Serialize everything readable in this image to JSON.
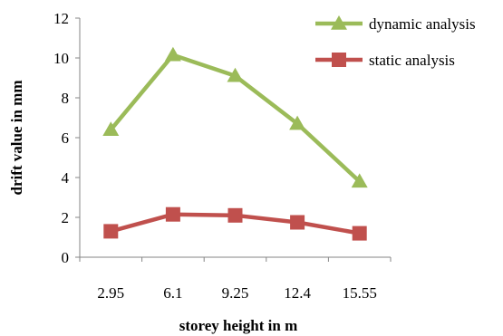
{
  "chart_data": {
    "type": "line",
    "title": "",
    "xlabel": "storey height in m",
    "ylabel": "drift value in mm",
    "categories": [
      "2.95",
      "6.1",
      "9.25",
      "12.4",
      "15.55"
    ],
    "ylim": [
      0,
      12
    ],
    "yticks": [
      0,
      2,
      4,
      6,
      8,
      10,
      12
    ],
    "grid": false,
    "legend_position": "top-right",
    "series": [
      {
        "name": "dynamic analysis",
        "values": [
          6.4,
          10.15,
          9.1,
          6.7,
          3.8
        ],
        "color": "#9BBB59",
        "marker": "triangle"
      },
      {
        "name": "static analysis",
        "values": [
          1.3,
          2.15,
          2.1,
          1.75,
          1.2
        ],
        "color": "#C0504D",
        "marker": "square"
      }
    ]
  }
}
